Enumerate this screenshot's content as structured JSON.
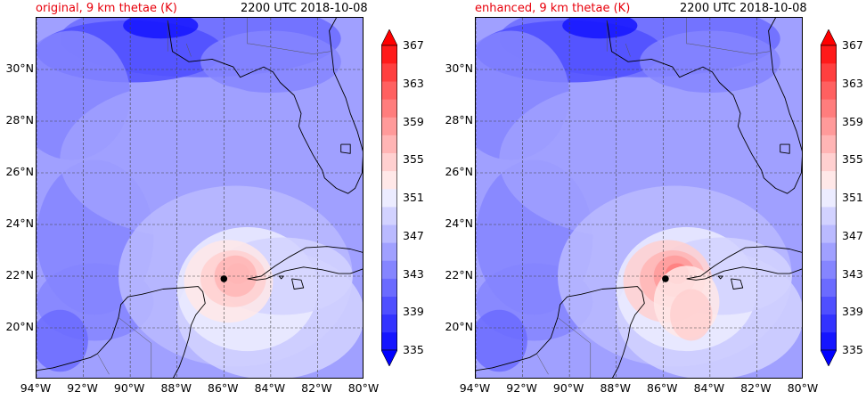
{
  "panels": [
    {
      "id": "original",
      "title_left": "original, 9 km thetae (K)",
      "title_right": "2200 UTC 2018-10-08",
      "storm_marker": {
        "lon": -86.0,
        "lat": 21.9
      }
    },
    {
      "id": "enhanced",
      "title_left": "enhanced, 9 km thetae (K)",
      "title_right": "2200 UTC 2018-10-08",
      "storm_marker": {
        "lon": -85.9,
        "lat": 21.9
      }
    }
  ],
  "map_extent": {
    "lon_min": -94,
    "lon_max": -80,
    "lat_min": 18,
    "lat_max": 32
  },
  "lat_ticks": [
    "30°N",
    "28°N",
    "26°N",
    "24°N",
    "22°N",
    "20°N"
  ],
  "lat_values": [
    30,
    28,
    26,
    24,
    22,
    20
  ],
  "lon_ticks": [
    "94°W",
    "92°W",
    "90°W",
    "88°W",
    "86°W",
    "84°W",
    "82°W",
    "80°W"
  ],
  "lon_values": [
    -94,
    -92,
    -90,
    -88,
    -86,
    -84,
    -82,
    -80
  ],
  "colorbar": {
    "ticks": [
      "367",
      "363",
      "359",
      "355",
      "351",
      "347",
      "343",
      "339",
      "335"
    ],
    "levels": [
      335,
      337,
      339,
      341,
      343,
      345,
      347,
      349,
      351,
      353,
      355,
      357,
      359,
      361,
      363,
      365,
      367
    ],
    "colors": [
      "#1515ff",
      "#3333ff",
      "#4f4fff",
      "#6b6bff",
      "#8585ff",
      "#a0a0ff",
      "#babaff",
      "#d2d2ff",
      "#ececff",
      "#ffe8e8",
      "#ffd0d0",
      "#ffb5b5",
      "#ff9a9a",
      "#ff7d7d",
      "#ff6060",
      "#ff3f3f",
      "#ff1a1a"
    ],
    "extend_min_color": "#0000ff",
    "extend_max_color": "#ff0000"
  }
}
